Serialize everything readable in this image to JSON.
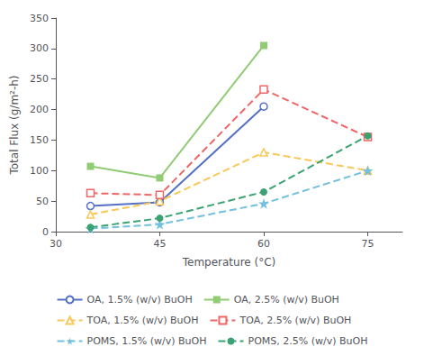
{
  "chart_data": {
    "type": "line",
    "xlabel": "Temperature (°C)",
    "ylabel": "Total Flux (g/m²-h)",
    "xlim": [
      30,
      80
    ],
    "ylim": [
      0,
      350
    ],
    "xticks": [
      30,
      45,
      60,
      75
    ],
    "yticks": [
      0,
      50,
      100,
      150,
      200,
      250,
      300,
      350
    ],
    "grid": false,
    "legend": "bottom",
    "series": [
      {
        "name": "OA, 1.5% (w/v) BuOH",
        "x": [
          35,
          45,
          60
        ],
        "values": [
          42,
          48,
          205
        ],
        "marker": "circle_open",
        "line_style": "solid"
      },
      {
        "name": "OA, 2.5% (w/v) BuOH",
        "x": [
          35,
          45,
          60
        ],
        "values": [
          107,
          88,
          305
        ],
        "marker": "square_filled",
        "line_style": "solid"
      },
      {
        "name": "TOA, 1.5% (w/v) BuOH",
        "x": [
          35,
          45,
          60,
          75
        ],
        "values": [
          28,
          50,
          130,
          100
        ],
        "marker": "triangle_open",
        "line_style": "dashed"
      },
      {
        "name": "TOA, 2.5% (w/v) BuOH",
        "x": [
          35,
          45,
          60,
          75
        ],
        "values": [
          63,
          60,
          233,
          155
        ],
        "marker": "square_open",
        "line_style": "dashed"
      },
      {
        "name": "POMS, 1.5% (w/v) BuOH",
        "x": [
          35,
          45,
          60,
          75
        ],
        "values": [
          5,
          12,
          46,
          100
        ],
        "marker": "star_filled",
        "line_style": "dashed"
      },
      {
        "name": "POMS, 2.5% (w/v) BuOH",
        "x": [
          35,
          45,
          60,
          75
        ],
        "values": [
          7,
          22,
          65,
          157
        ],
        "marker": "circle_filled",
        "line_style": "dashed"
      }
    ]
  }
}
